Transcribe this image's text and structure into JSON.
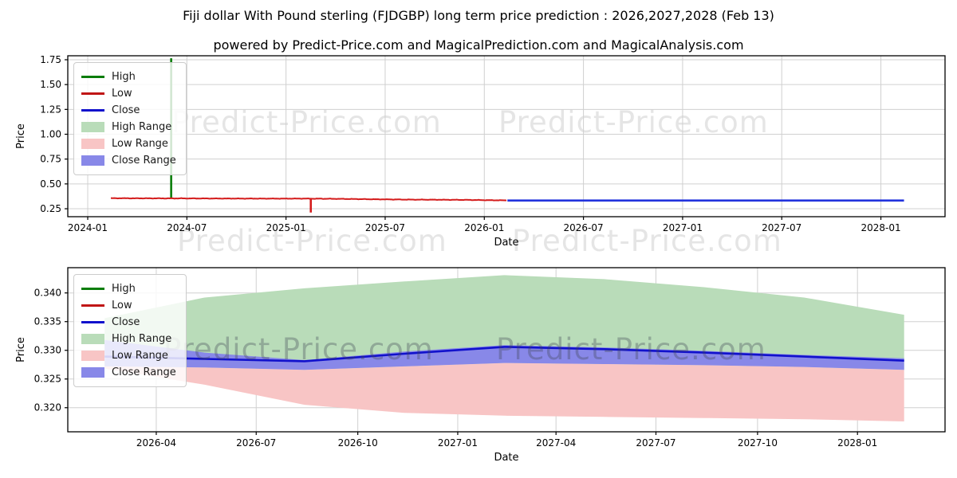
{
  "header": {
    "title": "Fiji dollar With Pound sterling (FJDGBP) long term price prediction : 2026,2027,2028 (Feb 13)",
    "subtitle": "powered by Predict-Price.com and MagicalPrediction.com and MagicalAnalysis.com"
  },
  "watermark": {
    "text": "Predict-Price.com"
  },
  "colors": {
    "high_line": "#0a7d0a",
    "low_line": "#d41c1c",
    "close_line": "#1111cc",
    "forecast_close_line": "#2233dd",
    "high_range_fill": "#b9dcb9",
    "low_range_fill": "#f8c5c5",
    "close_range_fill": "#8888e8",
    "grid": "#d0d0d0",
    "spine": "#000000"
  },
  "legend": {
    "items": [
      {
        "label": "High",
        "swatch": "line",
        "color": "#0a7d0a"
      },
      {
        "label": "Low",
        "swatch": "line",
        "color": "#c01515"
      },
      {
        "label": "Close",
        "swatch": "line",
        "color": "#1111cc"
      },
      {
        "label": "High Range",
        "swatch": "patch",
        "color": "#b9dcb9"
      },
      {
        "label": "Low Range",
        "swatch": "patch",
        "color": "#f8c5c5"
      },
      {
        "label": "Close Range",
        "swatch": "patch",
        "color": "#8888e8"
      }
    ]
  },
  "chart_data": [
    {
      "id": "history",
      "type": "line",
      "xlabel": "Date",
      "ylabel": "Price",
      "grid": true,
      "legend_position": "upper left",
      "ylim": [
        0.17,
        1.79
      ],
      "yticks": [
        {
          "label": "0.25",
          "value": 0.25
        },
        {
          "label": "0.50",
          "value": 0.5
        },
        {
          "label": "0.75",
          "value": 0.75
        },
        {
          "label": "1.00",
          "value": 1.0
        },
        {
          "label": "1.25",
          "value": 1.25
        },
        {
          "label": "1.50",
          "value": 1.5
        },
        {
          "label": "1.75",
          "value": 1.75
        }
      ],
      "xticks": [
        {
          "label": "2024-01",
          "month": 0
        },
        {
          "label": "2024-07",
          "month": 6
        },
        {
          "label": "2025-01",
          "month": 12
        },
        {
          "label": "2025-07",
          "month": 18
        },
        {
          "label": "2026-01",
          "month": 24
        },
        {
          "label": "2026-07",
          "month": 30
        },
        {
          "label": "2027-01",
          "month": 36
        },
        {
          "label": "2027-07",
          "month": 42
        },
        {
          "label": "2028-01",
          "month": 48
        }
      ],
      "low_history": {
        "name": "Low",
        "months": [
          1.4,
          3,
          5,
          7,
          9,
          11,
          13,
          15,
          17,
          19,
          21,
          23,
          25.4
        ],
        "values": [
          0.356,
          0.355,
          0.3545,
          0.3535,
          0.3525,
          0.352,
          0.352,
          0.35,
          0.346,
          0.3425,
          0.341,
          0.339,
          0.334
        ],
        "noise_amplitude": 0.0013
      },
      "high_spike": {
        "month": 5.05,
        "from": 0.36,
        "to": 1.765
      },
      "low_spike": {
        "month": 13.5,
        "from": 0.35,
        "to": 0.212
      },
      "close_forecast_flat": {
        "from_month": 25.4,
        "to_month": 49.4,
        "value": 0.333
      }
    },
    {
      "id": "forecast",
      "type": "area",
      "xlabel": "Date",
      "ylabel": "Price",
      "grid": true,
      "legend_position": "upper left",
      "ylim": [
        0.3158,
        0.3444
      ],
      "yticks": [
        {
          "label": "0.320",
          "value": 0.32
        },
        {
          "label": "0.325",
          "value": 0.325
        },
        {
          "label": "0.330",
          "value": 0.33
        },
        {
          "label": "0.335",
          "value": 0.335
        },
        {
          "label": "0.340",
          "value": 0.34
        }
      ],
      "xticks": [
        {
          "label": "2026-04",
          "month": 1.55
        },
        {
          "label": "2026-07",
          "month": 4.55
        },
        {
          "label": "2026-10",
          "month": 7.6
        },
        {
          "label": "2027-01",
          "month": 10.6
        },
        {
          "label": "2027-04",
          "month": 13.55
        },
        {
          "label": "2027-07",
          "month": 16.55
        },
        {
          "label": "2027-10",
          "month": 19.6
        },
        {
          "label": "2028-01",
          "month": 22.6
        }
      ],
      "x_months": [
        0,
        3,
        6,
        9,
        12,
        15,
        18,
        21,
        24
      ],
      "series": [
        {
          "name": "High Range top",
          "values": [
            0.3356,
            0.3392,
            0.3408,
            0.342,
            0.3431,
            0.3424,
            0.341,
            0.3392,
            0.3362
          ]
        },
        {
          "name": "Close Range top",
          "values": [
            0.3318,
            0.3296,
            0.3283,
            0.3298,
            0.3309,
            0.3305,
            0.3299,
            0.3292,
            0.3286
          ]
        },
        {
          "name": "Close",
          "values": [
            0.3289,
            0.3285,
            0.3281,
            0.3294,
            0.3306,
            0.3302,
            0.3296,
            0.3289,
            0.3282
          ]
        },
        {
          "name": "Close Range bottom",
          "values": [
            0.3272,
            0.327,
            0.3266,
            0.3272,
            0.3278,
            0.3276,
            0.3274,
            0.3271,
            0.3266
          ]
        },
        {
          "name": "Low Range bottom",
          "values": [
            0.3268,
            0.324,
            0.3205,
            0.3191,
            0.3186,
            0.3184,
            0.3182,
            0.318,
            0.3176
          ]
        }
      ]
    }
  ]
}
